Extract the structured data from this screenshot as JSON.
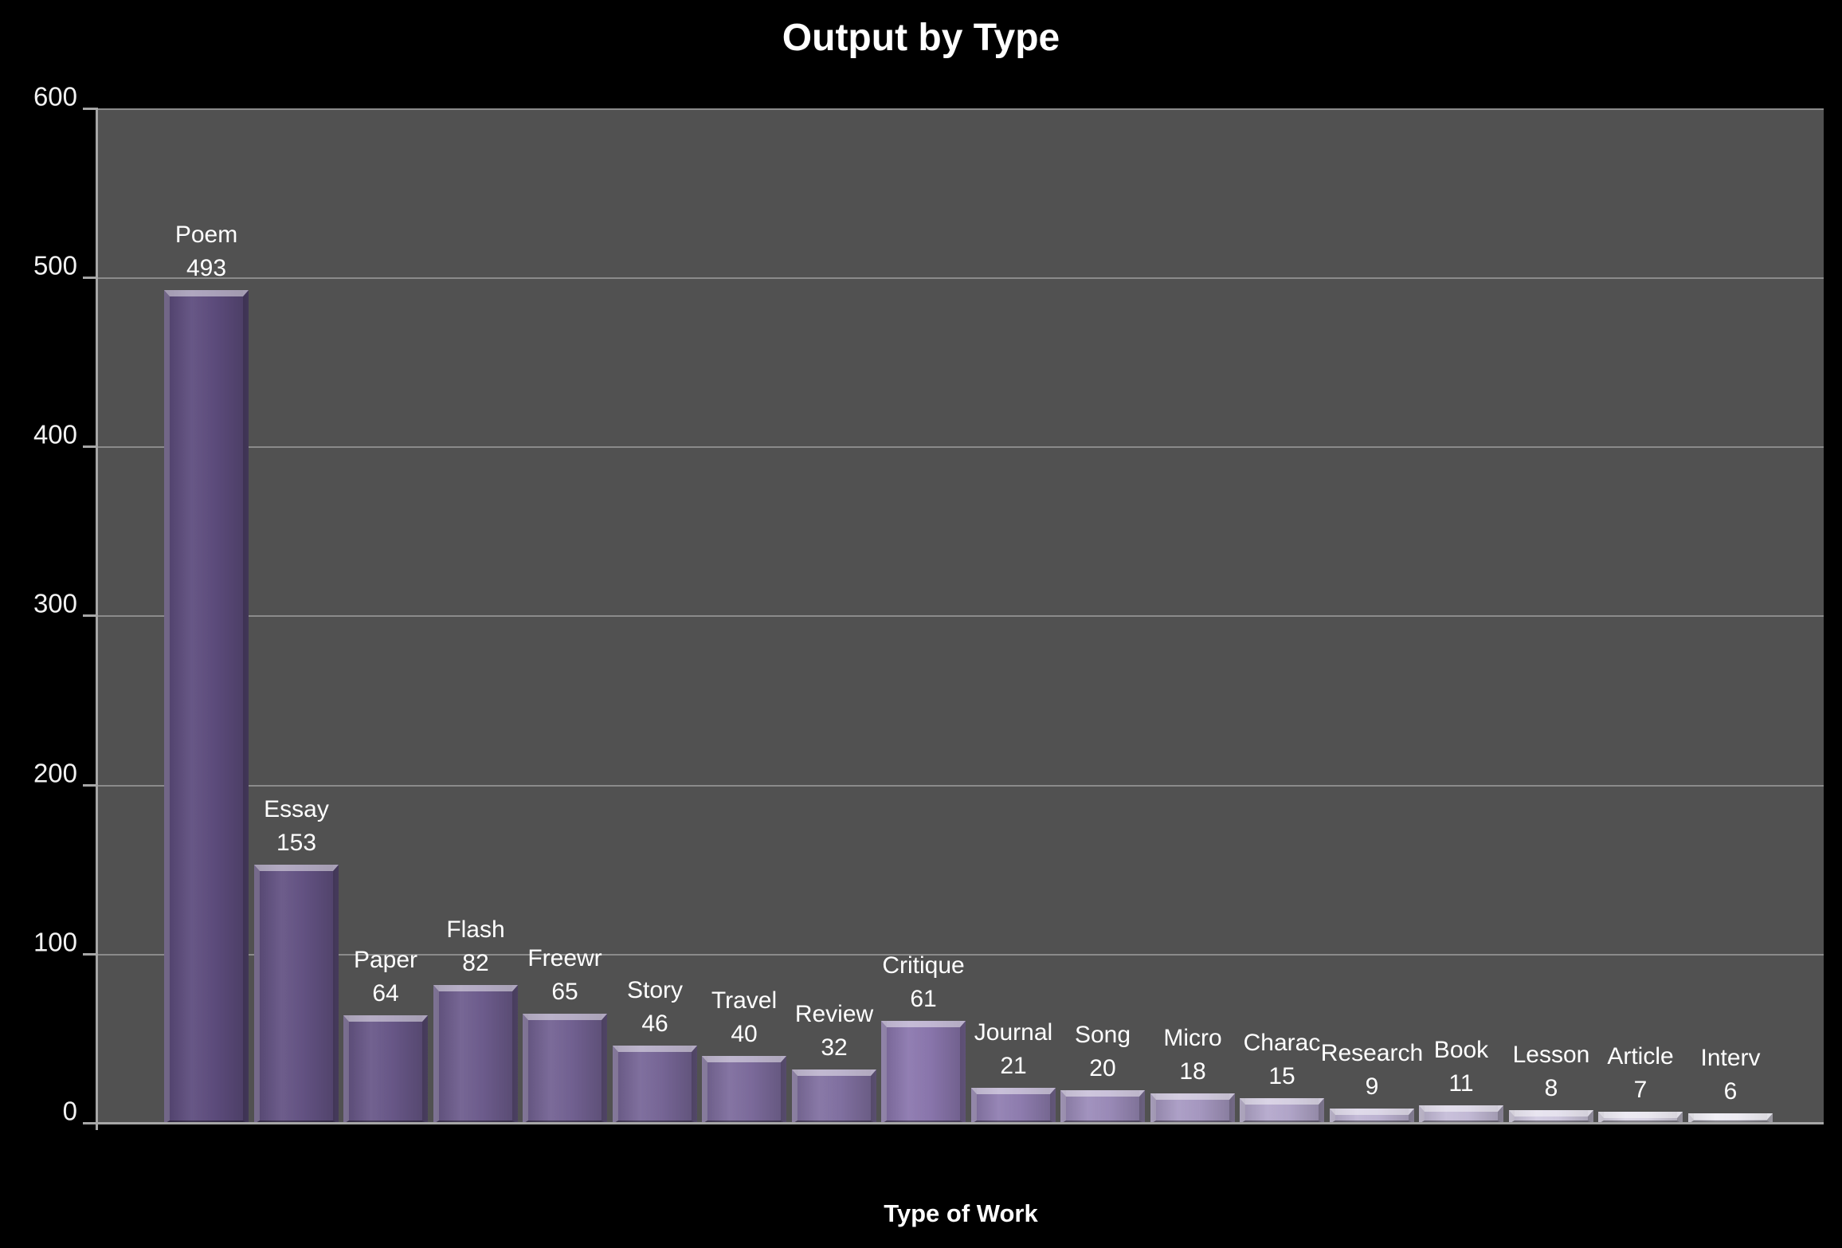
{
  "title": "Output by Type",
  "xlabel": "Type of Work",
  "chart_data": {
    "type": "bar",
    "title": "Output by Type",
    "xlabel": "Type of Work",
    "ylabel": "",
    "categories": [
      "Poem",
      "Essay",
      "Paper",
      "Flash",
      "Freewr",
      "Story",
      "Travel",
      "Review",
      "Critique",
      "Journal",
      "Song",
      "Micro",
      "Charac",
      "Research",
      "Book",
      "Lesson",
      "Article",
      "Interv"
    ],
    "values": [
      493,
      153,
      64,
      82,
      65,
      46,
      40,
      32,
      61,
      21,
      20,
      18,
      15,
      9,
      11,
      8,
      7,
      6
    ],
    "bar_colors": [
      "#5e4d7e",
      "#645384",
      "#695889",
      "#6e5d8e",
      "#736293",
      "#786798",
      "#7d6c9d",
      "#8271a2",
      "#8b77ae",
      "#907eb1",
      "#9c8cba",
      "#a89ac3",
      "#b4a8cc",
      "#c0b6d5",
      "#c6bdd9",
      "#d2cbe2",
      "#dcd7e8",
      "#e2dfec"
    ],
    "ylim": [
      0,
      600
    ],
    "yticks": [
      0,
      100,
      200,
      300,
      400,
      500,
      600
    ],
    "grid": true,
    "legend": "none",
    "data_labels": "category name and value shown above each bar",
    "colors": {
      "page_background": "#000000",
      "plot_background": "#515151",
      "gridline": "#8b8b8b",
      "axis_line": "#a6a6a6",
      "tick_label_text": "#f2f2f2",
      "label_text": "#ffffff"
    }
  }
}
